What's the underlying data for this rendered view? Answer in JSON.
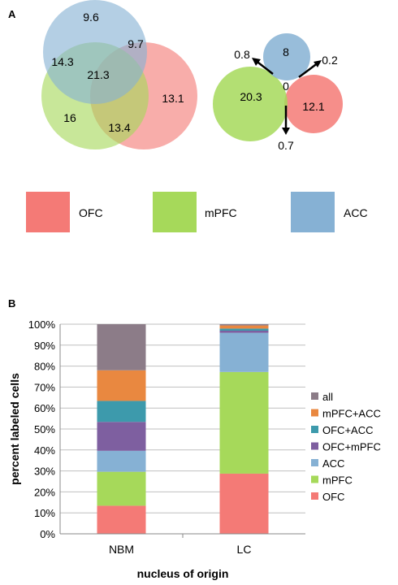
{
  "colors": {
    "OFC": "#f47a76",
    "mPFC": "#a6d95a",
    "ACC": "#86b1d4",
    "OFC+mPFC": "#7e5fa0",
    "OFC+ACC": "#3d9aac",
    "mPFC+ACC": "#e98840",
    "all": "#8c7c88"
  },
  "panel_a": {
    "label": "A",
    "venn1": {
      "acc_only": "9.6",
      "acc_mpfc": "14.3",
      "acc_ofc": "9.7",
      "all": "21.3",
      "mpfc_only": "16",
      "mpfc_ofc": "13.4",
      "ofc_only": "13.1"
    },
    "venn2": {
      "acc_only": "8",
      "acc_mpfc": "0.8",
      "acc_ofc": "0.2",
      "all": "0",
      "mpfc_only": "20.3",
      "ofc_only": "12.1",
      "mpfc_ofc": "0.7"
    },
    "legend": [
      "OFC",
      "mPFC",
      "ACC"
    ]
  },
  "chart_data": {
    "panel_label": "B",
    "type": "bar",
    "stacked": true,
    "categories": [
      "NBM",
      "LC"
    ],
    "series": [
      {
        "name": "OFC",
        "values": [
          13.4,
          28.7
        ]
      },
      {
        "name": "mPFC",
        "values": [
          16.2,
          48.5
        ]
      },
      {
        "name": "ACC",
        "values": [
          10.0,
          18.7
        ]
      },
      {
        "name": "OFC+mPFC",
        "values": [
          13.8,
          1.0
        ]
      },
      {
        "name": "OFC+ACC",
        "values": [
          10.0,
          1.0
        ]
      },
      {
        "name": "mPFC+ACC",
        "values": [
          14.6,
          1.5
        ]
      },
      {
        "name": "all",
        "values": [
          22.0,
          0.6
        ]
      }
    ],
    "ylabel": "percent labeled cells",
    "xlabel": "nucleus of origin",
    "ylim": [
      0,
      100
    ],
    "yticks": [
      "0%",
      "10%",
      "20%",
      "30%",
      "40%",
      "50%",
      "60%",
      "70%",
      "80%",
      "90%",
      "100%"
    ],
    "grid": true,
    "legend_position": "right",
    "legend_order": [
      "all",
      "mPFC+ACC",
      "OFC+ACC",
      "OFC+mPFC",
      "ACC",
      "mPFC",
      "OFC"
    ]
  }
}
